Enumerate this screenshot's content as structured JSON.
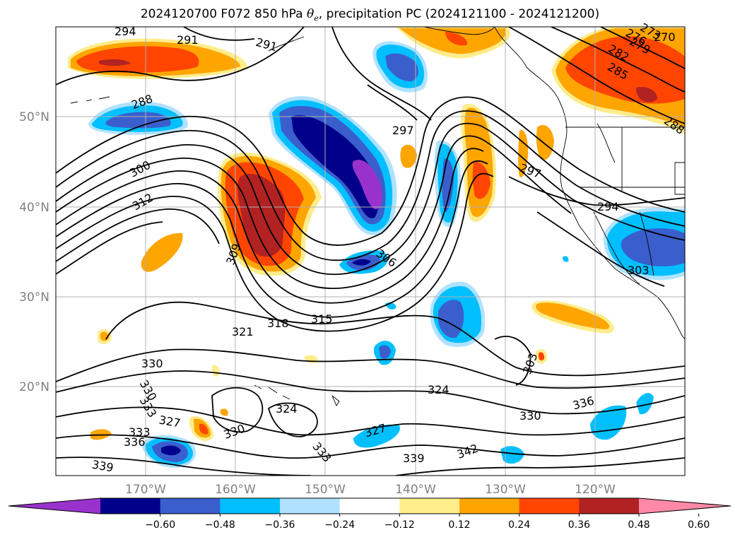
{
  "title": {
    "prefix": "2024120700 F072 850 hPa ",
    "symbol": "θ",
    "subscript": "e",
    "suffix": ", precipitation PC (2024121100 - 2024121200)"
  },
  "lat_labels": [
    "50°N",
    "40°N",
    "30°N",
    "20°N"
  ],
  "lon_labels": [
    "170°W",
    "160°W",
    "150°W",
    "140°W",
    "130°W",
    "120°W"
  ],
  "contour_labels": [
    "294",
    "291",
    "291",
    "288",
    "300",
    "312",
    "309",
    "306",
    "297",
    "297",
    "294",
    "303",
    "285",
    "282",
    "279",
    "276",
    "273",
    "270",
    "288",
    "321",
    "318",
    "315",
    "330",
    "330",
    "330",
    "327",
    "324",
    "324",
    "333",
    "336",
    "333",
    "327",
    "339",
    "339",
    "342",
    "330",
    "336",
    "333",
    "303"
  ],
  "colorbar": {
    "ticks": [
      "−0.60",
      "−0.48",
      "−0.36",
      "−0.24",
      "−0.12",
      "0.12",
      "0.24",
      "0.36",
      "0.48",
      "0.60"
    ],
    "colors": [
      "#9932cc",
      "#00008b",
      "#3a5fcd",
      "#00bfff",
      "#b0e2ff",
      "#ffffff",
      "#ffec8b",
      "#ffa500",
      "#ff4500",
      "#b22222",
      "#ff89a6"
    ]
  },
  "colors": {
    "land_outline": "#000000",
    "grid": "#b0b0b0",
    "axis_text": "#808080"
  }
}
